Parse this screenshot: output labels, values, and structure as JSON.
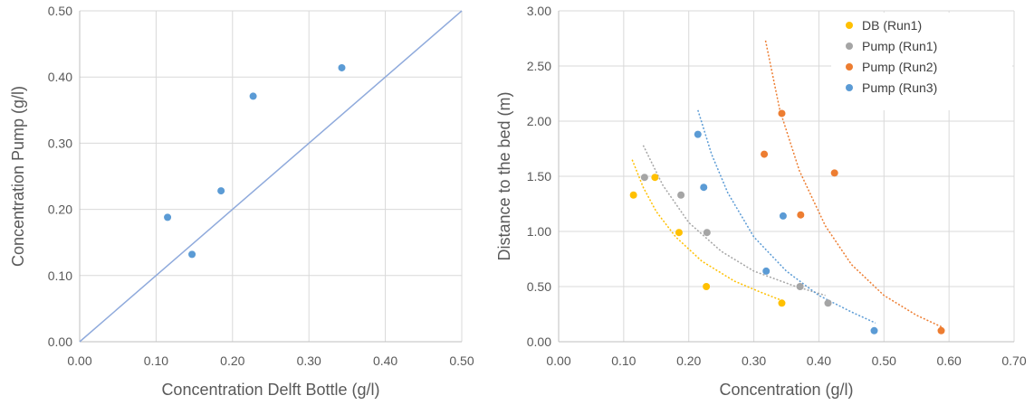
{
  "chart_data": [
    {
      "type": "scatter",
      "title": "",
      "xlabel": "Concentration  Delft Bottle (g/l)",
      "ylabel": "Concentration  Pump (g/l)",
      "xlim": [
        0,
        0.5
      ],
      "ylim": [
        0,
        0.5
      ],
      "xticks": [
        "0.00",
        "0.10",
        "0.20",
        "0.30",
        "0.40",
        "0.50"
      ],
      "yticks": [
        "0.00",
        "0.10",
        "0.20",
        "0.30",
        "0.40",
        "0.50"
      ],
      "grid": true,
      "legend": "none",
      "series": [
        {
          "color": "#5b9bd5",
          "points": [
            [
              0.115,
              0.188
            ],
            [
              0.147,
              0.132
            ],
            [
              0.185,
              0.228
            ],
            [
              0.227,
              0.371
            ],
            [
              0.343,
              0.414
            ]
          ]
        }
      ],
      "reference_line": {
        "from": [
          0,
          0
        ],
        "to": [
          0.5,
          0.5
        ],
        "color": "#8faadc"
      }
    },
    {
      "type": "scatter",
      "title": "",
      "xlabel": "Concentration  (g/l)",
      "ylabel": "Distance to the bed (m)",
      "xlim": [
        0,
        0.7
      ],
      "ylim": [
        0,
        3
      ],
      "xticks": [
        "0.00",
        "0.10",
        "0.20",
        "0.30",
        "0.40",
        "0.50",
        "0.60",
        "0.70"
      ],
      "yticks": [
        "0.00",
        "0.50",
        "1.00",
        "1.50",
        "2.00",
        "2.50",
        "3.00"
      ],
      "grid": true,
      "legend": "top-right",
      "series": [
        {
          "name": "DB (Run1)",
          "color": "#ffc000",
          "points": [
            [
              0.115,
              1.33
            ],
            [
              0.148,
              1.49
            ],
            [
              0.185,
              0.99
            ],
            [
              0.227,
              0.5
            ],
            [
              0.343,
              0.35
            ]
          ],
          "trend": [
            [
              0.113,
              1.65
            ],
            [
              0.13,
              1.4
            ],
            [
              0.15,
              1.18
            ],
            [
              0.18,
              0.95
            ],
            [
              0.22,
              0.73
            ],
            [
              0.27,
              0.55
            ],
            [
              0.31,
              0.45
            ],
            [
              0.345,
              0.37
            ]
          ]
        },
        {
          "name": "Pump (Run1)",
          "color": "#a5a5a5",
          "points": [
            [
              0.132,
              1.49
            ],
            [
              0.188,
              1.33
            ],
            [
              0.228,
              0.99
            ],
            [
              0.371,
              0.5
            ],
            [
              0.414,
              0.35
            ]
          ],
          "trend": [
            [
              0.13,
              1.78
            ],
            [
              0.16,
              1.42
            ],
            [
              0.2,
              1.08
            ],
            [
              0.25,
              0.82
            ],
            [
              0.3,
              0.64
            ],
            [
              0.36,
              0.51
            ],
            [
              0.41,
              0.42
            ]
          ]
        },
        {
          "name": "Pump (Run2)",
          "color": "#ed7d31",
          "points": [
            [
              0.343,
              2.07
            ],
            [
              0.316,
              1.7
            ],
            [
              0.424,
              1.53
            ],
            [
              0.372,
              1.15
            ],
            [
              0.588,
              0.1
            ]
          ],
          "trend": [
            [
              0.318,
              2.73
            ],
            [
              0.34,
              2.1
            ],
            [
              0.37,
              1.55
            ],
            [
              0.41,
              1.05
            ],
            [
              0.45,
              0.7
            ],
            [
              0.5,
              0.42
            ],
            [
              0.55,
              0.24
            ],
            [
              0.59,
              0.13
            ]
          ]
        },
        {
          "name": "Pump (Run3)",
          "color": "#5b9bd5",
          "points": [
            [
              0.214,
              1.88
            ],
            [
              0.223,
              1.4
            ],
            [
              0.345,
              1.14
            ],
            [
              0.319,
              0.64
            ],
            [
              0.485,
              0.1
            ]
          ],
          "trend": [
            [
              0.214,
              2.1
            ],
            [
              0.235,
              1.7
            ],
            [
              0.26,
              1.35
            ],
            [
              0.3,
              0.95
            ],
            [
              0.35,
              0.64
            ],
            [
              0.4,
              0.42
            ],
            [
              0.45,
              0.27
            ],
            [
              0.487,
              0.17
            ]
          ]
        }
      ]
    }
  ]
}
